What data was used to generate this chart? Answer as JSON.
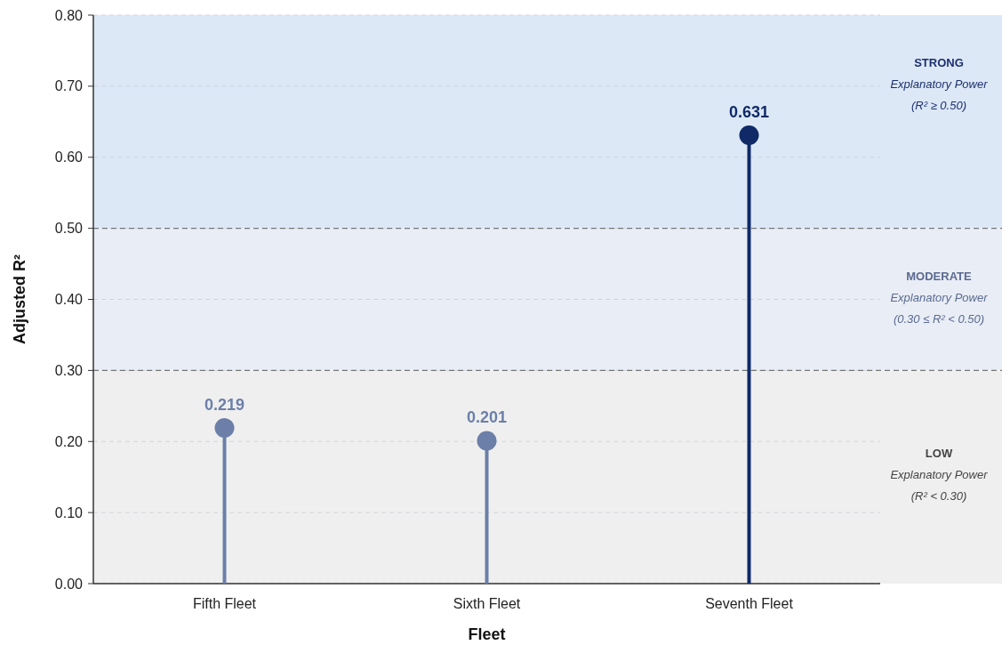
{
  "chart_data": {
    "type": "lollipop",
    "xlabel": "Fleet",
    "ylabel": "Adjusted R²",
    "categories": [
      "Fifth Fleet",
      "Sixth Fleet",
      "Seventh Fleet"
    ],
    "values": [
      0.219,
      0.201,
      0.631
    ],
    "colors": [
      "#6b7fa8",
      "#6b7fa8",
      "#0f2a66"
    ],
    "data_labels": true,
    "ylim": [
      0,
      0.8
    ],
    "yticks": [
      "0.00",
      "0.10",
      "0.20",
      "0.30",
      "0.40",
      "0.50",
      "0.60",
      "0.70",
      "0.80"
    ],
    "grid": "y",
    "marker": "circle",
    "bands": [
      {
        "axis": "y",
        "from": 0,
        "to": 0.3,
        "label": "LOW\nExplanatory Power\n(R² < 0.30)",
        "color": "#efefef"
      },
      {
        "axis": "y",
        "from": 0.3,
        "to": 0.5,
        "label": "MODERATE\nExplanatory Power\n(0.30 ≤ R² < 0.50)",
        "color": "#e9edf5"
      },
      {
        "axis": "y",
        "from": 0.5,
        "to": 0.8,
        "label": "STRONG\nExplanatory Power\n(R² ≥ 0.50)",
        "color": "#dde8f7"
      }
    ],
    "ref_lines": [
      {
        "axis": "y",
        "value": 0.3,
        "color": "#777777",
        "line_style": "dashed"
      },
      {
        "axis": "y",
        "value": 0.5,
        "color": "#777777",
        "line_style": "dashed"
      }
    ]
  }
}
